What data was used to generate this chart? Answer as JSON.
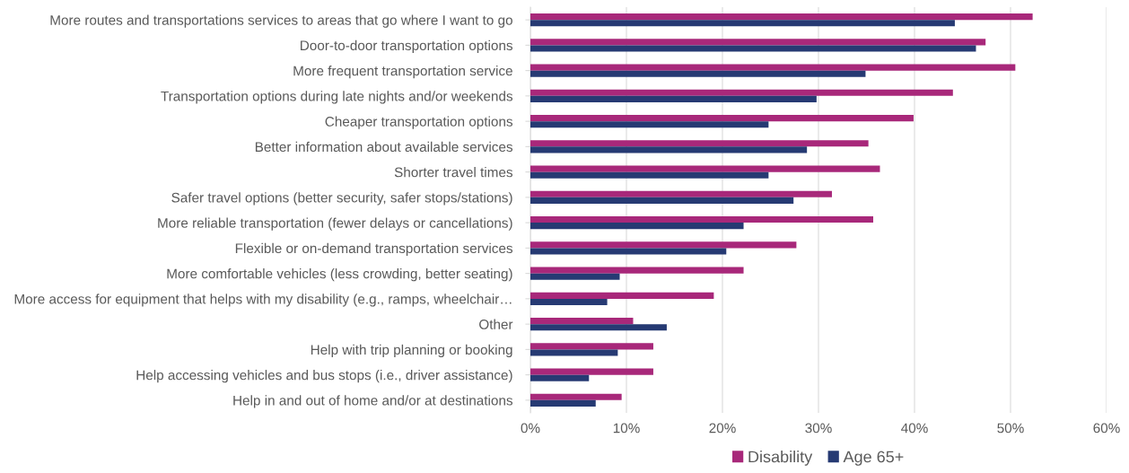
{
  "chart_data": {
    "type": "bar",
    "orientation": "horizontal",
    "categories": [
      "More routes and transportations services to areas that go where I want to go",
      "Door-to-door transportation options",
      "More frequent transportation service",
      "Transportation options during late nights and/or weekends",
      "Cheaper transportation options",
      "Better information about available services",
      "Shorter travel times",
      "Safer travel options (better security, safer stops/stations)",
      "More reliable transportation (fewer delays or cancellations)",
      "Flexible or on-demand transportation services",
      "More comfortable vehicles (less crowding, better seating)",
      "More access for equipment that helps with my disability (e.g., ramps, wheelchair…",
      "Other",
      "Help with trip planning or booking",
      "Help accessing vehicles and bus stops (i.e., driver assistance)",
      "Help in and out of home and/or at destinations"
    ],
    "series": [
      {
        "name": "Disability",
        "color": "#a8287a",
        "values": [
          52.3,
          47.4,
          50.5,
          44.0,
          39.9,
          35.2,
          36.4,
          31.4,
          35.7,
          27.7,
          22.2,
          19.1,
          10.7,
          12.8,
          12.8,
          9.5
        ]
      },
      {
        "name": "Age 65+",
        "color": "#263a73",
        "values": [
          44.2,
          46.4,
          34.9,
          29.8,
          24.8,
          28.8,
          24.8,
          27.4,
          22.2,
          20.4,
          9.3,
          8.0,
          14.2,
          9.1,
          6.1,
          6.8
        ]
      }
    ],
    "xlim": [
      0,
      60
    ],
    "xticks": [
      {
        "value": 0,
        "label": "0%"
      },
      {
        "value": 10,
        "label": "10%"
      },
      {
        "value": 20,
        "label": "20%"
      },
      {
        "value": 30,
        "label": "30%"
      },
      {
        "value": 40,
        "label": "40%"
      },
      {
        "value": 50,
        "label": "50%"
      },
      {
        "value": 60,
        "label": "60%"
      }
    ],
    "grid": "x",
    "legend": "bottom"
  }
}
